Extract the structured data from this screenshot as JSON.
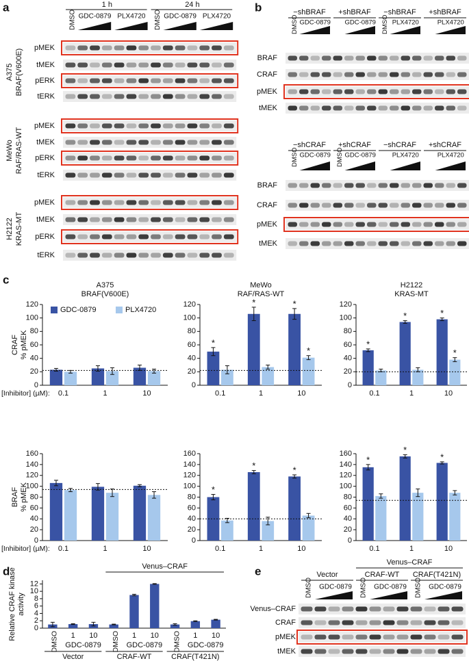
{
  "panel_labels": [
    "a",
    "b",
    "c",
    "d",
    "e"
  ],
  "panel_a": {
    "timepoints": [
      "1 h",
      "24 h"
    ],
    "lanes": [
      "DMSO",
      "GDC-0879",
      "PLX4720",
      "DMSO",
      "GDC-0879",
      "PLX4720"
    ],
    "groups": [
      {
        "cell_line": "A375",
        "genotype": "BRAF(V600E)",
        "rows": [
          {
            "label": "pMEK",
            "boxed": true
          },
          {
            "label": "tMEK"
          },
          {
            "label": "pERK",
            "boxed": true
          },
          {
            "label": "tERK"
          }
        ]
      },
      {
        "cell_line": "MeWo",
        "genotype": "RAF/RAS-WT",
        "rows": [
          {
            "label": "pMEK",
            "boxed": true
          },
          {
            "label": "tMEK"
          },
          {
            "label": "pERK",
            "boxed": true
          },
          {
            "label": "tERK"
          }
        ]
      },
      {
        "cell_line": "H2122",
        "genotype": "KRAS-MT",
        "rows": [
          {
            "label": "pMEK",
            "boxed": true
          },
          {
            "label": "tMEK"
          },
          {
            "label": "pERK",
            "boxed": true
          },
          {
            "label": "tERK"
          }
        ]
      }
    ]
  },
  "panel_b": {
    "blots": [
      {
        "quarters": [
          {
            "header": "−shBRAF",
            "dmso": "DMSO",
            "drug": "GDC-0879"
          },
          {
            "header": "+shBRAF",
            "drug": "GDC-0879"
          },
          {
            "header": "−shBRAF",
            "dmso": "DMSO",
            "drug": "PLX4720"
          },
          {
            "header": "+shBRAF",
            "drug": "PLX4720"
          }
        ],
        "rows": [
          {
            "label": "BRAF"
          },
          {
            "label": "CRAF"
          },
          {
            "label": "pMEK",
            "boxed": true
          },
          {
            "label": "tMEK"
          }
        ]
      },
      {
        "quarters": [
          {
            "header": "−shCRAF",
            "dmso": "DMSO",
            "drug": "GDC-0879"
          },
          {
            "header": "+shCRAF",
            "dmso": "DMSO",
            "drug": "GDC-0879"
          },
          {
            "header": "−shCRAF",
            "drug": "PLX4720"
          },
          {
            "header": "+shCRAF",
            "drug": "PLX4720"
          }
        ],
        "rows": [
          {
            "label": "BRAF"
          },
          {
            "label": "CRAF"
          },
          {
            "label": "pMEK",
            "boxed": true
          },
          {
            "label": "tMEK"
          }
        ]
      }
    ]
  },
  "panel_e": {
    "header": "Venus–CRAF",
    "groups": [
      {
        "label": "Vector",
        "dmso": "DMSO",
        "drug": "GDC-0879"
      },
      {
        "label": "CRAF-WT",
        "dmso": "DMSO",
        "drug": "GDC-0879"
      },
      {
        "label": "CRAF(T421N)",
        "dmso": "DMSO",
        "drug": "GDC-0879"
      }
    ],
    "rows": [
      {
        "label": "Venus–CRAF"
      },
      {
        "label": "CRAF"
      },
      {
        "label": "pMEK",
        "boxed": true
      },
      {
        "label": "tMEK"
      }
    ]
  },
  "chart_data": [
    {
      "type": "bar",
      "title": [
        "A375",
        "BRAF(V600E)"
      ],
      "ylabel": [
        "CRAF",
        "% pMEK"
      ],
      "xlabel": "[Inhibitor] (µM):",
      "categories": [
        "0.1",
        "1",
        "10"
      ],
      "series": [
        {
          "name": "GDC-0879",
          "color": "#3953a4",
          "values": [
            23,
            25,
            26
          ],
          "errors": [
            2,
            4,
            4
          ]
        },
        {
          "name": "PLX4720",
          "color": "#a6c8ec",
          "values": [
            20,
            21,
            21
          ],
          "errors": [
            2,
            5,
            3
          ]
        }
      ],
      "ylim": [
        0,
        120
      ],
      "yticks": [
        0,
        20,
        40,
        60,
        80,
        100,
        120
      ],
      "reference_line": 22,
      "legend": "upper left"
    },
    {
      "type": "bar",
      "title": [
        "MeWo",
        "RAF/RAS-WT"
      ],
      "categories": [
        "0.1",
        "1",
        "10"
      ],
      "series": [
        {
          "color": "#3953a4",
          "values": [
            50,
            106,
            106
          ],
          "errors": [
            6,
            10,
            8
          ],
          "markers": [
            "*",
            "*",
            "*"
          ]
        },
        {
          "color": "#a6c8ec",
          "values": [
            23,
            27,
            41
          ],
          "errors": [
            6,
            3,
            3
          ],
          "markers": [
            null,
            null,
            "*"
          ]
        }
      ],
      "ylim": [
        0,
        120
      ],
      "yticks": [
        0,
        20,
        40,
        60,
        80,
        100,
        120
      ],
      "reference_line": 22
    },
    {
      "type": "bar",
      "title": [
        "H2122",
        "KRAS-MT"
      ],
      "categories": [
        "0.1",
        "1",
        "10"
      ],
      "series": [
        {
          "color": "#3953a4",
          "values": [
            52,
            94,
            98
          ],
          "errors": [
            2,
            2,
            2
          ],
          "markers": [
            "*",
            "*",
            "*"
          ]
        },
        {
          "color": "#a6c8ec",
          "values": [
            22,
            23,
            38
          ],
          "errors": [
            2,
            3,
            3
          ],
          "markers": [
            null,
            null,
            "*"
          ]
        }
      ],
      "ylim": [
        0,
        120
      ],
      "yticks": [
        0,
        20,
        40,
        60,
        80,
        100,
        120
      ],
      "reference_line": 20
    },
    {
      "type": "bar",
      "ylabel": [
        "BRAF",
        "% pMEK"
      ],
      "xlabel": "[Inhibitor] (µM):",
      "categories": [
        "0.1",
        "1",
        "10"
      ],
      "series": [
        {
          "color": "#3953a4",
          "values": [
            106,
            99,
            101
          ],
          "errors": [
            5,
            6,
            2
          ]
        },
        {
          "color": "#a6c8ec",
          "values": [
            93,
            88,
            84
          ],
          "errors": [
            3,
            7,
            6
          ]
        }
      ],
      "ylim": [
        0,
        160
      ],
      "yticks": [
        0,
        20,
        40,
        60,
        80,
        100,
        120,
        140,
        160
      ],
      "reference_line": 94
    },
    {
      "type": "bar",
      "categories": [
        "0.1",
        "1",
        "10"
      ],
      "series": [
        {
          "color": "#3953a4",
          "values": [
            80,
            126,
            118
          ],
          "errors": [
            5,
            3,
            3
          ],
          "markers": [
            "*",
            "*",
            "*"
          ]
        },
        {
          "color": "#a6c8ec",
          "values": [
            37,
            36,
            46
          ],
          "errors": [
            4,
            7,
            4
          ]
        }
      ],
      "ylim": [
        0,
        160
      ],
      "yticks": [
        0,
        20,
        40,
        60,
        80,
        100,
        120,
        140,
        160
      ],
      "reference_line": 40
    },
    {
      "type": "bar",
      "categories": [
        "0.1",
        "1",
        "10"
      ],
      "series": [
        {
          "color": "#3953a4",
          "values": [
            135,
            155,
            143
          ],
          "errors": [
            5,
            3,
            2
          ],
          "markers": [
            "*",
            "*",
            "*"
          ]
        },
        {
          "color": "#a6c8ec",
          "values": [
            82,
            88,
            88
          ],
          "errors": [
            4,
            7,
            4
          ]
        }
      ],
      "ylim": [
        0,
        160
      ],
      "yticks": [
        0,
        20,
        40,
        60,
        80,
        100,
        120,
        140,
        160
      ],
      "reference_line": 74
    },
    {
      "type": "bar",
      "ylabel": [
        "Relative CRAF kinase",
        "activity"
      ],
      "categories": [
        "DMSO",
        "1",
        "10",
        "DMSO",
        "1",
        "10",
        "DMSO",
        "1",
        "10"
      ],
      "series": [
        {
          "color": "#3953a4",
          "values": [
            1.0,
            1.1,
            1.1,
            1.0,
            9.0,
            12.0,
            1.0,
            1.9,
            2.3
          ],
          "errors": [
            0.6,
            0.1,
            0.5,
            0.1,
            0.2,
            0.1,
            0.2,
            0.1,
            0.1
          ]
        }
      ],
      "groups": [
        {
          "drug": "GDC-0879",
          "label": "Vector"
        },
        {
          "drug": "GDC-0879",
          "label": "CRAF-WT"
        },
        {
          "drug": "GDC-0879",
          "label": "CRAF(T421N)"
        }
      ],
      "bracket": "Venus–CRAF",
      "ylim": [
        0,
        13
      ],
      "yticks": [
        0,
        2,
        4,
        6,
        8,
        10,
        12
      ]
    }
  ]
}
